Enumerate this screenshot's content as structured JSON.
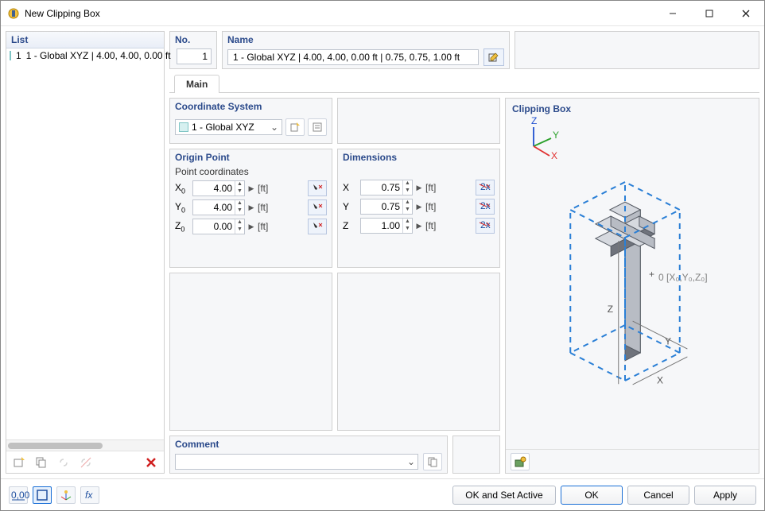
{
  "window": {
    "title": "New Clipping Box"
  },
  "list": {
    "header": "List",
    "items": [
      {
        "index": "1",
        "label": "1 - Global XYZ | 4.00, 4.00, 0.00 ft"
      }
    ]
  },
  "no": {
    "label": "No.",
    "value": "1"
  },
  "name": {
    "label": "Name",
    "value": "1 - Global XYZ | 4.00, 4.00, 0.00 ft | 0.75, 0.75, 1.00 ft"
  },
  "tabs": {
    "main": "Main"
  },
  "coordSystem": {
    "label": "Coordinate System",
    "value": "1 - Global XYZ"
  },
  "origin": {
    "label": "Origin Point",
    "sublabel": "Point coordinates",
    "rows": [
      {
        "axis": "X",
        "sub": "0",
        "value": "4.00",
        "unit": "[ft]"
      },
      {
        "axis": "Y",
        "sub": "0",
        "value": "4.00",
        "unit": "[ft]"
      },
      {
        "axis": "Z",
        "sub": "0",
        "value": "0.00",
        "unit": "[ft]"
      }
    ]
  },
  "dimensions": {
    "label": "Dimensions",
    "rows": [
      {
        "axis": "X",
        "value": "0.75",
        "unit": "[ft]"
      },
      {
        "axis": "Y",
        "value": "0.75",
        "unit": "[ft]"
      },
      {
        "axis": "Z",
        "value": "1.00",
        "unit": "[ft]"
      }
    ]
  },
  "comment": {
    "label": "Comment",
    "value": ""
  },
  "preview": {
    "label": "Clipping Box",
    "axes": {
      "x": "X",
      "y": "Y",
      "z": "Z"
    },
    "origin_label": "0 [X₀,Y₀,Z₀]",
    "dim_labels": {
      "x": "X",
      "y": "Y",
      "z": "Z"
    },
    "colors": {
      "solid_face_light": "#d6d9df",
      "solid_face_mid": "#b8bcc4",
      "solid_face_dark": "#6f737c",
      "solid_edge": "#555a63",
      "box_line": "#2a7fd6",
      "dim_line": "#777",
      "axis_x": "#e03030",
      "axis_y": "#2aa02a",
      "axis_z": "#2050d0"
    }
  },
  "buttons": {
    "ok_set_active": "OK and Set Active",
    "ok": "OK",
    "cancel": "Cancel",
    "apply": "Apply"
  }
}
